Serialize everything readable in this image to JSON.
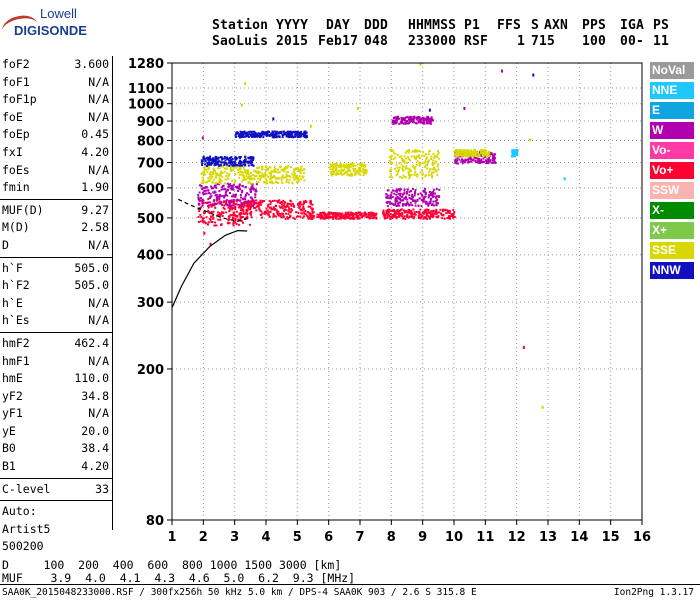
{
  "logo": {
    "line1": "Lowell",
    "line2": "DIGISONDE"
  },
  "header": {
    "row1": [
      "Station",
      "YYYY",
      "DAY",
      "DDD",
      "HHMMSS",
      "P1",
      "FFS",
      "S",
      "AXN",
      "PPS",
      "IGA",
      "PS"
    ],
    "row2": [
      "SaoLuis",
      "2015",
      "Feb17",
      "048",
      "233000",
      "RSF",
      "1",
      "715",
      "100",
      "00-",
      "11"
    ]
  },
  "params": [
    [
      {
        "name": "foF2",
        "value": "3.600"
      },
      {
        "name": "foF1",
        "value": "N/A"
      },
      {
        "name": "foF1p",
        "value": "N/A"
      },
      {
        "name": "foE",
        "value": "N/A"
      },
      {
        "name": "foEp",
        "value": "0.45"
      },
      {
        "name": "fxI",
        "value": "4.20"
      },
      {
        "name": "foEs",
        "value": "N/A"
      },
      {
        "name": "fmin",
        "value": "1.90"
      }
    ],
    [
      {
        "name": "MUF(D)",
        "value": "9.27"
      },
      {
        "name": "M(D)",
        "value": "2.58"
      },
      {
        "name": "D",
        "value": "N/A"
      }
    ],
    [
      {
        "name": "h`F",
        "value": "505.0"
      },
      {
        "name": "h`F2",
        "value": "505.0"
      },
      {
        "name": "h`E",
        "value": "N/A"
      },
      {
        "name": "h`Es",
        "value": "N/A"
      }
    ],
    [
      {
        "name": "hmF2",
        "value": "462.4"
      },
      {
        "name": "hmF1",
        "value": "N/A"
      },
      {
        "name": "hmE",
        "value": "110.0"
      },
      {
        "name": "yF2",
        "value": "34.8"
      },
      {
        "name": "yF1",
        "value": "N/A"
      },
      {
        "name": "yE",
        "value": "20.0"
      },
      {
        "name": "B0",
        "value": "38.4"
      },
      {
        "name": "B1",
        "value": "4.20"
      }
    ],
    [
      {
        "name": "C-level",
        "value": "33"
      }
    ]
  ],
  "auto": [
    "Auto:",
    "Artist5",
    "500200"
  ],
  "legend": [
    {
      "label": "NoVal",
      "color": "#9a9a9a"
    },
    {
      "label": "NNE",
      "color": "#1ec8ff"
    },
    {
      "label": "E",
      "color": "#10a4e0"
    },
    {
      "label": "W",
      "color": "#b000b0"
    },
    {
      "label": "Vo-",
      "color": "#ff3aa4"
    },
    {
      "label": "Vo+",
      "color": "#ff0033"
    },
    {
      "label": "SSW",
      "color": "#f8b4b0"
    },
    {
      "label": "X-",
      "color": "#008c00"
    },
    {
      "label": "X+",
      "color": "#7ec84a"
    },
    {
      "label": "SSE",
      "color": "#d8d800"
    },
    {
      "label": "NNW",
      "color": "#1010c0"
    }
  ],
  "chart_data": {
    "type": "scatter",
    "title": "",
    "xlabel": "",
    "ylabel": "",
    "xlim": [
      1,
      16
    ],
    "x_ticks": [
      1,
      2,
      3,
      4,
      5,
      6,
      7,
      8,
      9,
      10,
      11,
      12,
      13,
      14,
      15,
      16
    ],
    "y_ticks": [
      80,
      200,
      300,
      400,
      500,
      600,
      700,
      800,
      900,
      1000,
      1100,
      1280
    ],
    "y_scale": "log",
    "ylim": [
      80,
      1280
    ],
    "grid": true,
    "clusters": [
      {
        "x": [
          1.8,
          3.5
        ],
        "y": [
          480,
          560
        ],
        "color": "#ff0033"
      },
      {
        "x": [
          1.8,
          3.7
        ],
        "y": [
          540,
          620
        ],
        "color": "#b000b0"
      },
      {
        "x": [
          1.9,
          5.2
        ],
        "y": [
          620,
          690
        ],
        "color": "#d8d800"
      },
      {
        "x": [
          1.9,
          3.6
        ],
        "y": [
          690,
          730
        ],
        "color": "#1010c0"
      },
      {
        "x": [
          3.0,
          5.3
        ],
        "y": [
          820,
          850
        ],
        "color": "#1010c0"
      },
      {
        "x": [
          3.2,
          5.5
        ],
        "y": [
          500,
          560
        ],
        "color": "#ff0033"
      },
      {
        "x": [
          6.0,
          7.2
        ],
        "y": [
          650,
          700
        ],
        "color": "#d8d800"
      },
      {
        "x": [
          5.6,
          7.5
        ],
        "y": [
          500,
          520
        ],
        "color": "#ff0033"
      },
      {
        "x": [
          7.7,
          10.0
        ],
        "y": [
          500,
          530
        ],
        "color": "#ff0033"
      },
      {
        "x": [
          7.8,
          9.5
        ],
        "y": [
          540,
          600
        ],
        "color": "#b000b0"
      },
      {
        "x": [
          8.0,
          9.3
        ],
        "y": [
          890,
          930
        ],
        "color": "#b000b0"
      },
      {
        "x": [
          7.9,
          9.5
        ],
        "y": [
          640,
          760
        ],
        "color": "#d8d800"
      },
      {
        "x": [
          10.0,
          11.3
        ],
        "y": [
          700,
          750
        ],
        "color": "#b000b0"
      },
      {
        "x": [
          10.0,
          11.1
        ],
        "y": [
          730,
          760
        ],
        "color": "#d8d800"
      },
      {
        "x": [
          11.8,
          12.0
        ],
        "y": [
          730,
          760
        ],
        "color": "#1ec8ff"
      }
    ],
    "trace_lines": [
      {
        "x": [
          1.0,
          1.3,
          1.7,
          2.2,
          2.7,
          3.1,
          3.4
        ],
        "y": [
          290,
          330,
          380,
          420,
          450,
          463,
          462
        ]
      },
      {
        "x": [
          1.2,
          1.6,
          2.1,
          2.6,
          3.1,
          3.5
        ],
        "y": [
          560,
          540,
          520,
          500,
          490,
          500
        ]
      }
    ]
  },
  "footer": {
    "d_row": "D     100  200  400  600  800 1000 1500 3000 [km]",
    "muf_row": "MUF    3.9  4.0  4.1  4.3  4.6  5.0  6.2  9.3 [MHz]",
    "file": "SAA0K_2015048233000.RSF / 300fx256h 50 kHz 5.0 km / DPS-4 SAA0K 903 / 2.6 S 315.8 E",
    "version": "Ion2Png 1.3.17"
  }
}
